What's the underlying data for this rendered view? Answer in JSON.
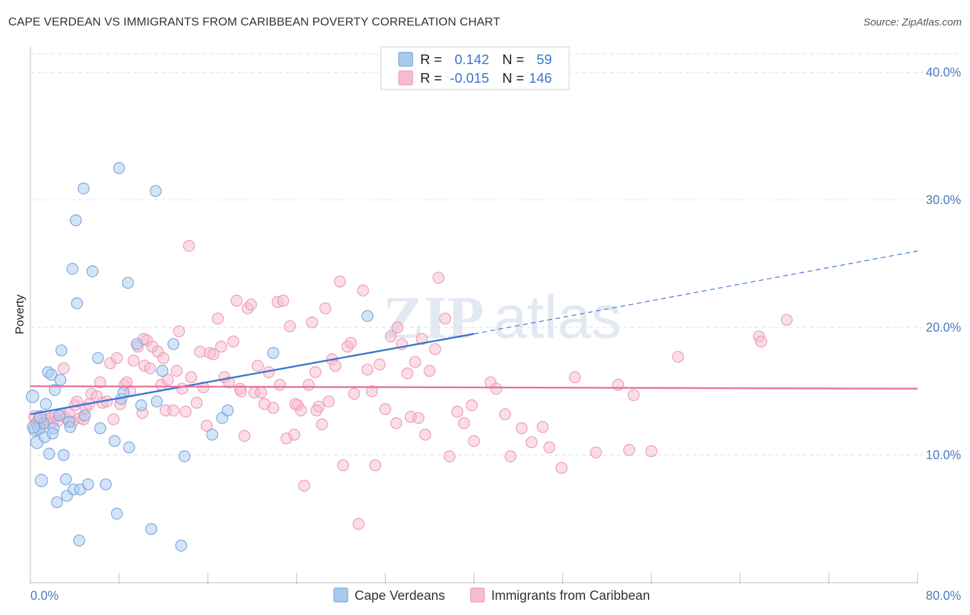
{
  "title": "CAPE VERDEAN VS IMMIGRANTS FROM CARIBBEAN POVERTY CORRELATION CHART",
  "source": "Source: ZipAtlas.com",
  "watermark": {
    "zip": "ZIP",
    "atlas": "atlas"
  },
  "colors": {
    "blue_fill": "#a9c9ef",
    "blue_stroke": "#7aa6dc",
    "blue_line": "#3a76d0",
    "pink_fill": "#f6bcd0",
    "pink_stroke": "#ee9ab7",
    "pink_line": "#e8729a",
    "grid": "#dcdcdc",
    "tick_text": "#4a7cc4"
  },
  "legend": {
    "row1": {
      "r_label": "R = ",
      "r_value": "0.142",
      "n_label": "N = ",
      "n_value": "59"
    },
    "row2": {
      "r_label": "R = ",
      "r_value": "-0.015",
      "n_label": "N = ",
      "n_value": "146"
    }
  },
  "bottom_legend": {
    "series1": "Cape Verdeans",
    "series2": "Immigrants from Caribbean"
  },
  "axis": {
    "ylabel": "Poverty",
    "yticks": [
      "10.0%",
      "20.0%",
      "30.0%",
      "40.0%"
    ],
    "x_min_label": "0.0%",
    "x_max_label": "80.0%"
  },
  "chart_data": {
    "type": "scatter",
    "xlabel": "",
    "ylabel": "Poverty",
    "xlim": [
      0,
      80
    ],
    "ylim": [
      0,
      42
    ],
    "ytick_values": [
      10,
      20,
      30,
      40
    ],
    "grid": true,
    "legend_position": "top-center",
    "series": [
      {
        "name": "Cape Verdeans",
        "r": 0.142,
        "n": 59,
        "trend": {
          "x": [
            0,
            40
          ],
          "y": [
            13.2,
            19.5
          ],
          "dashed_extension": {
            "x": [
              40,
              80
            ],
            "y": [
              19.5,
              26.0
            ]
          }
        },
        "points": [
          [
            0.2,
            14.6
          ],
          [
            0.4,
            12.0
          ],
          [
            0.6,
            11.0
          ],
          [
            0.8,
            12.1
          ],
          [
            1.0,
            8.0
          ],
          [
            1.2,
            12.5
          ],
          [
            1.3,
            11.4
          ],
          [
            1.4,
            14.0
          ],
          [
            1.6,
            16.5
          ],
          [
            1.7,
            10.1
          ],
          [
            1.9,
            16.3
          ],
          [
            2.1,
            12.1
          ],
          [
            2.2,
            15.1
          ],
          [
            2.4,
            6.3
          ],
          [
            2.6,
            13.1
          ],
          [
            2.7,
            15.9
          ],
          [
            2.8,
            18.2
          ],
          [
            3.0,
            10.0
          ],
          [
            3.2,
            8.1
          ],
          [
            3.3,
            6.8
          ],
          [
            3.5,
            12.6
          ],
          [
            3.6,
            12.2
          ],
          [
            3.8,
            24.6
          ],
          [
            3.9,
            7.3
          ],
          [
            4.1,
            28.4
          ],
          [
            4.2,
            21.9
          ],
          [
            4.4,
            3.3
          ],
          [
            4.5,
            7.3
          ],
          [
            4.8,
            30.9
          ],
          [
            4.9,
            13.1
          ],
          [
            5.2,
            7.7
          ],
          [
            5.6,
            24.4
          ],
          [
            6.1,
            17.6
          ],
          [
            6.3,
            12.1
          ],
          [
            6.8,
            7.7
          ],
          [
            7.6,
            11.1
          ],
          [
            7.8,
            5.4
          ],
          [
            8.0,
            32.5
          ],
          [
            8.2,
            14.4
          ],
          [
            8.4,
            14.9
          ],
          [
            8.8,
            23.5
          ],
          [
            8.9,
            10.6
          ],
          [
            9.6,
            18.7
          ],
          [
            10.0,
            13.9
          ],
          [
            10.9,
            4.2
          ],
          [
            11.3,
            30.7
          ],
          [
            11.4,
            14.2
          ],
          [
            11.9,
            16.6
          ],
          [
            12.9,
            18.7
          ],
          [
            13.6,
            2.9
          ],
          [
            13.9,
            9.9
          ],
          [
            16.4,
            11.6
          ],
          [
            17.3,
            12.9
          ],
          [
            17.8,
            13.5
          ],
          [
            21.9,
            18.0
          ],
          [
            30.4,
            20.9
          ],
          [
            0.3,
            12.2
          ],
          [
            0.9,
            13.0
          ],
          [
            2.0,
            11.7
          ]
        ]
      },
      {
        "name": "Immigrants from Caribbean",
        "r": -0.015,
        "n": 146,
        "trend": {
          "x": [
            0,
            80
          ],
          "y": [
            15.4,
            15.2
          ]
        },
        "points": [
          [
            0.4,
            13.0
          ],
          [
            0.6,
            12.5
          ],
          [
            0.8,
            12.8
          ],
          [
            1.0,
            12.7
          ],
          [
            1.2,
            12.4
          ],
          [
            1.5,
            12.8
          ],
          [
            1.8,
            12.9
          ],
          [
            2.0,
            12.6
          ],
          [
            2.2,
            13.1
          ],
          [
            2.5,
            12.7
          ],
          [
            2.8,
            13.2
          ],
          [
            3.0,
            16.8
          ],
          [
            3.2,
            12.9
          ],
          [
            3.5,
            13.3
          ],
          [
            3.8,
            12.6
          ],
          [
            4.0,
            13.9
          ],
          [
            4.2,
            14.2
          ],
          [
            4.5,
            12.9
          ],
          [
            4.8,
            12.8
          ],
          [
            5.0,
            13.7
          ],
          [
            5.3,
            14.0
          ],
          [
            5.5,
            14.8
          ],
          [
            6.0,
            14.6
          ],
          [
            6.3,
            15.7
          ],
          [
            6.5,
            14.1
          ],
          [
            6.9,
            14.2
          ],
          [
            7.2,
            17.2
          ],
          [
            7.5,
            12.8
          ],
          [
            7.8,
            17.6
          ],
          [
            8.1,
            14.0
          ],
          [
            8.5,
            15.5
          ],
          [
            8.7,
            15.7
          ],
          [
            9.0,
            15.0
          ],
          [
            9.3,
            17.4
          ],
          [
            9.7,
            18.5
          ],
          [
            10.1,
            13.3
          ],
          [
            10.3,
            17.0
          ],
          [
            10.5,
            19.0
          ],
          [
            10.8,
            16.8
          ],
          [
            11.0,
            18.5
          ],
          [
            11.5,
            18.1
          ],
          [
            11.8,
            15.5
          ],
          [
            12.2,
            13.5
          ],
          [
            12.4,
            15.9
          ],
          [
            12.9,
            13.5
          ],
          [
            13.2,
            16.6
          ],
          [
            13.4,
            19.7
          ],
          [
            13.7,
            15.2
          ],
          [
            14.0,
            13.4
          ],
          [
            14.3,
            26.4
          ],
          [
            14.5,
            16.1
          ],
          [
            15.0,
            14.1
          ],
          [
            15.3,
            18.1
          ],
          [
            15.6,
            15.3
          ],
          [
            15.9,
            12.3
          ],
          [
            16.2,
            18.0
          ],
          [
            16.5,
            17.9
          ],
          [
            16.9,
            20.7
          ],
          [
            17.2,
            18.5
          ],
          [
            17.5,
            16.1
          ],
          [
            17.9,
            15.7
          ],
          [
            18.3,
            18.9
          ],
          [
            18.6,
            22.1
          ],
          [
            18.9,
            15.2
          ],
          [
            19.3,
            11.5
          ],
          [
            19.6,
            21.5
          ],
          [
            19.9,
            21.8
          ],
          [
            20.2,
            14.9
          ],
          [
            20.5,
            17.0
          ],
          [
            20.8,
            14.9
          ],
          [
            21.1,
            14.0
          ],
          [
            21.5,
            16.5
          ],
          [
            21.9,
            13.7
          ],
          [
            22.3,
            22.0
          ],
          [
            22.5,
            15.5
          ],
          [
            22.8,
            22.1
          ],
          [
            23.1,
            11.3
          ],
          [
            23.4,
            20.1
          ],
          [
            23.8,
            11.6
          ],
          [
            24.1,
            13.9
          ],
          [
            24.4,
            13.5
          ],
          [
            24.7,
            7.6
          ],
          [
            25.1,
            15.5
          ],
          [
            25.4,
            20.4
          ],
          [
            25.7,
            16.5
          ],
          [
            26.0,
            13.8
          ],
          [
            26.3,
            12.4
          ],
          [
            26.6,
            21.5
          ],
          [
            26.9,
            14.2
          ],
          [
            27.2,
            17.5
          ],
          [
            27.5,
            17.0
          ],
          [
            27.9,
            23.6
          ],
          [
            28.2,
            9.2
          ],
          [
            28.6,
            18.5
          ],
          [
            28.9,
            18.8
          ],
          [
            29.2,
            14.8
          ],
          [
            29.6,
            4.6
          ],
          [
            30.0,
            22.9
          ],
          [
            30.4,
            16.7
          ],
          [
            30.8,
            15.0
          ],
          [
            31.1,
            9.2
          ],
          [
            31.5,
            17.1
          ],
          [
            32.0,
            13.6
          ],
          [
            32.5,
            19.3
          ],
          [
            33.0,
            12.5
          ],
          [
            33.5,
            18.7
          ],
          [
            34.0,
            16.4
          ],
          [
            34.3,
            13.0
          ],
          [
            34.7,
            17.3
          ],
          [
            35.0,
            12.9
          ],
          [
            35.3,
            19.1
          ],
          [
            35.6,
            11.6
          ],
          [
            36.0,
            16.6
          ],
          [
            36.8,
            23.9
          ],
          [
            37.4,
            20.7
          ],
          [
            37.8,
            9.9
          ],
          [
            38.5,
            13.4
          ],
          [
            39.1,
            12.5
          ],
          [
            39.8,
            13.9
          ],
          [
            40.0,
            11.1
          ],
          [
            41.5,
            15.7
          ],
          [
            42.0,
            15.2
          ],
          [
            42.8,
            13.2
          ],
          [
            43.3,
            9.9
          ],
          [
            44.3,
            12.1
          ],
          [
            45.2,
            11.0
          ],
          [
            46.2,
            12.2
          ],
          [
            46.8,
            10.6
          ],
          [
            47.9,
            9.0
          ],
          [
            49.1,
            16.1
          ],
          [
            51.0,
            10.2
          ],
          [
            53.0,
            15.5
          ],
          [
            54.0,
            10.4
          ],
          [
            56.0,
            10.3
          ],
          [
            58.4,
            17.7
          ],
          [
            65.7,
            19.3
          ],
          [
            65.9,
            18.9
          ],
          [
            68.2,
            20.6
          ],
          [
            54.4,
            14.7
          ],
          [
            33.1,
            20.0
          ],
          [
            36.5,
            18.3
          ],
          [
            25.8,
            13.5
          ],
          [
            23.9,
            14.0
          ],
          [
            10.2,
            19.1
          ],
          [
            12.0,
            17.6
          ],
          [
            19.0,
            15.0
          ]
        ]
      }
    ]
  }
}
